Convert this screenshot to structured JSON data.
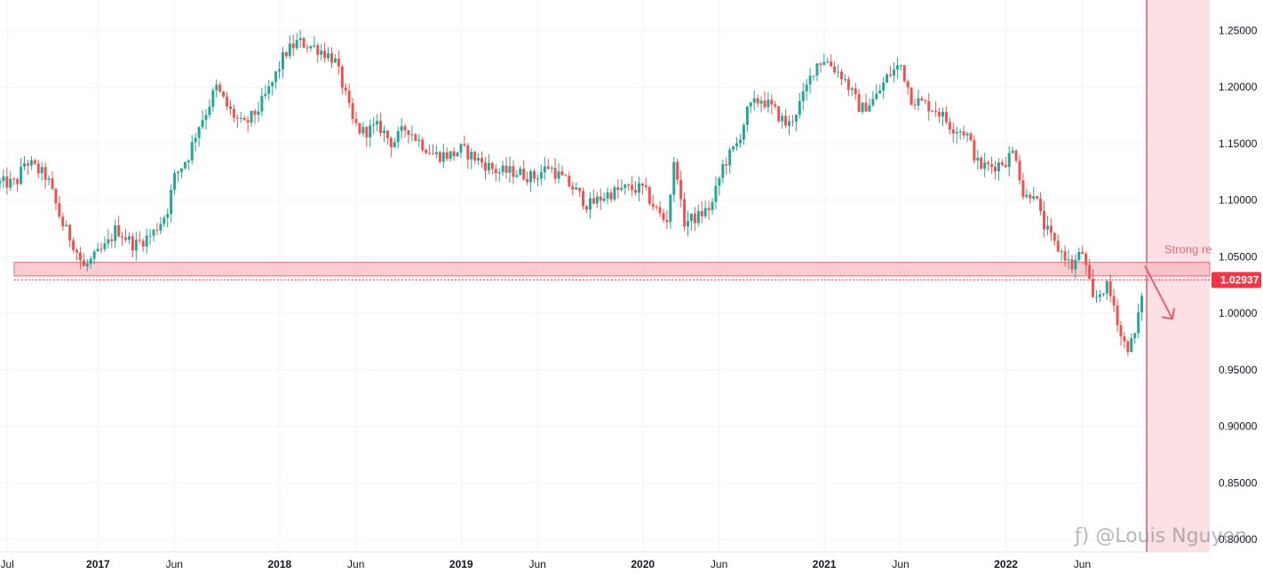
{
  "chart_data": {
    "type": "candlestick",
    "title": "",
    "xlabel": "",
    "ylabel": "",
    "y_range": [
      0.8,
      1.27
    ],
    "y_ticks": [
      "1.25000",
      "1.20000",
      "1.15000",
      "1.10000",
      "1.05000",
      "1.00000",
      "0.95000",
      "0.90000",
      "0.85000",
      "0.80000"
    ],
    "x_ticks": [
      {
        "label": "Jul",
        "year": false
      },
      {
        "label": "2017",
        "year": true
      },
      {
        "label": "Jun",
        "year": false
      },
      {
        "label": "2018",
        "year": true
      },
      {
        "label": "Jun",
        "year": false
      },
      {
        "label": "2019",
        "year": true
      },
      {
        "label": "Jun",
        "year": false
      },
      {
        "label": "2020",
        "year": true
      },
      {
        "label": "Jun",
        "year": false
      },
      {
        "label": "2021",
        "year": true
      },
      {
        "label": "Jun",
        "year": false
      },
      {
        "label": "2022",
        "year": true
      },
      {
        "label": "Jun",
        "year": false
      }
    ],
    "x_tick_times": [
      2016.5,
      2017.0,
      2017.42,
      2018.0,
      2018.42,
      2019.0,
      2019.42,
      2020.0,
      2020.42,
      2021.0,
      2021.42,
      2022.0,
      2022.42
    ],
    "x_range": [
      2016.46,
      2022.77
    ],
    "weekly_close_path": [
      [
        2016.46,
        1.115
      ],
      [
        2016.55,
        1.115
      ],
      [
        2016.6,
        1.135
      ],
      [
        2016.72,
        1.12
      ],
      [
        2016.8,
        1.08
      ],
      [
        2016.87,
        1.06
      ],
      [
        2016.92,
        1.04
      ],
      [
        2017.05,
        1.06
      ],
      [
        2017.1,
        1.075
      ],
      [
        2017.2,
        1.06
      ],
      [
        2017.3,
        1.07
      ],
      [
        2017.38,
        1.09
      ],
      [
        2017.42,
        1.12
      ],
      [
        2017.5,
        1.14
      ],
      [
        2017.55,
        1.165
      ],
      [
        2017.6,
        1.18
      ],
      [
        2017.65,
        1.2
      ],
      [
        2017.72,
        1.18
      ],
      [
        2017.8,
        1.165
      ],
      [
        2017.88,
        1.18
      ],
      [
        2017.95,
        1.2
      ],
      [
        2018.03,
        1.23
      ],
      [
        2018.1,
        1.24
      ],
      [
        2018.2,
        1.235
      ],
      [
        2018.3,
        1.225
      ],
      [
        2018.35,
        1.2
      ],
      [
        2018.4,
        1.17
      ],
      [
        2018.45,
        1.16
      ],
      [
        2018.55,
        1.165
      ],
      [
        2018.62,
        1.15
      ],
      [
        2018.7,
        1.165
      ],
      [
        2018.75,
        1.155
      ],
      [
        2018.85,
        1.14
      ],
      [
        2018.95,
        1.14
      ],
      [
        2019.0,
        1.145
      ],
      [
        2019.1,
        1.135
      ],
      [
        2019.2,
        1.125
      ],
      [
        2019.3,
        1.125
      ],
      [
        2019.4,
        1.12
      ],
      [
        2019.48,
        1.13
      ],
      [
        2019.55,
        1.12
      ],
      [
        2019.62,
        1.11
      ],
      [
        2019.7,
        1.095
      ],
      [
        2019.8,
        1.105
      ],
      [
        2019.9,
        1.11
      ],
      [
        2020.0,
        1.11
      ],
      [
        2020.08,
        1.09
      ],
      [
        2020.13,
        1.08
      ],
      [
        2020.18,
        1.14
      ],
      [
        2020.22,
        1.08
      ],
      [
        2020.3,
        1.085
      ],
      [
        2020.38,
        1.095
      ],
      [
        2020.44,
        1.13
      ],
      [
        2020.52,
        1.15
      ],
      [
        2020.58,
        1.18
      ],
      [
        2020.65,
        1.19
      ],
      [
        2020.72,
        1.18
      ],
      [
        2020.8,
        1.165
      ],
      [
        2020.88,
        1.19
      ],
      [
        2020.95,
        1.22
      ],
      [
        2021.0,
        1.225
      ],
      [
        2021.1,
        1.21
      ],
      [
        2021.2,
        1.18
      ],
      [
        2021.28,
        1.19
      ],
      [
        2021.35,
        1.21
      ],
      [
        2021.42,
        1.22
      ],
      [
        2021.48,
        1.19
      ],
      [
        2021.55,
        1.185
      ],
      [
        2021.62,
        1.18
      ],
      [
        2021.7,
        1.165
      ],
      [
        2021.78,
        1.16
      ],
      [
        2021.85,
        1.13
      ],
      [
        2021.92,
        1.13
      ],
      [
        2022.0,
        1.135
      ],
      [
        2022.05,
        1.145
      ],
      [
        2022.1,
        1.1
      ],
      [
        2022.15,
        1.11
      ],
      [
        2022.2,
        1.08
      ],
      [
        2022.27,
        1.06
      ],
      [
        2022.33,
        1.05
      ],
      [
        2022.36,
        1.04
      ],
      [
        2022.42,
        1.055
      ],
      [
        2022.48,
        1.01
      ],
      [
        2022.55,
        1.025
      ],
      [
        2022.6,
        1.005
      ],
      [
        2022.64,
        0.975
      ],
      [
        2022.68,
        0.97
      ],
      [
        2022.72,
        0.985
      ],
      [
        2022.75,
        1.02
      ]
    ],
    "resistance_zone": {
      "low": 1.033,
      "high": 1.045,
      "label": "Strong re"
    },
    "current_price": {
      "value": 1.02937,
      "label": "1.02937"
    },
    "projection": {
      "from": [
        2022.765,
        1.042
      ],
      "to": [
        2022.88,
        0.995
      ]
    },
    "colors": {
      "up": "#26a69a",
      "down": "#ef5350",
      "zone": "#f7b7bf",
      "zone_border": "#e06a78",
      "price_badge": "#f23645",
      "grid": "#f0f3fa"
    }
  },
  "watermark": "ƒ) @Louis Nguyen"
}
